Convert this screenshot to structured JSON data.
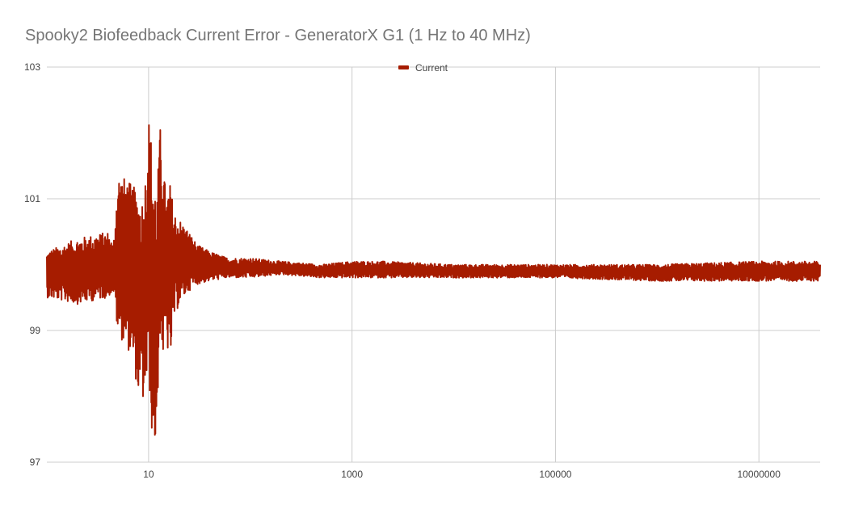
{
  "chart_data": {
    "type": "line",
    "title": "Spooky2 Biofeedback Current Error - GeneratorX G1 (1 Hz to 40 MHz)",
    "xlabel": "",
    "ylabel": "",
    "x_scale": "log",
    "xlim": [
      1,
      40000000
    ],
    "ylim": [
      97,
      103
    ],
    "x_ticks": [
      10,
      1000,
      100000,
      10000000
    ],
    "x_tick_labels": [
      "10",
      "1000",
      "100000",
      "10000000"
    ],
    "y_ticks": [
      97,
      99,
      101,
      103
    ],
    "y_tick_labels": [
      "97",
      "99",
      "101",
      "103"
    ],
    "grid": true,
    "legend_position": "top-center",
    "series": [
      {
        "name": "Current",
        "color": "#a61c00",
        "envelope": {
          "x": [
            1,
            2,
            4,
            4.5,
            5,
            6,
            7,
            8,
            9,
            10,
            11,
            12,
            13,
            14,
            15,
            16,
            18,
            20,
            25,
            30,
            40,
            60,
            100,
            200,
            500,
            1000,
            2000,
            10000,
            100000,
            1000000,
            10000000,
            40000000
          ],
          "y_max": [
            100.2,
            100.4,
            100.5,
            100.3,
            101.4,
            101.3,
            101.2,
            101.1,
            101.0,
            102.3,
            101.7,
            101.0,
            102.1,
            101.5,
            101.0,
            101.3,
            100.8,
            100.7,
            100.5,
            100.3,
            100.2,
            100.1,
            100.1,
            100.05,
            100.0,
            100.05,
            100.05,
            100.0,
            100.0,
            100.0,
            100.05,
            100.05
          ],
          "y_min": [
            99.5,
            99.4,
            99.5,
            99.6,
            98.9,
            98.8,
            98.5,
            98.0,
            97.9,
            98.3,
            97.2,
            97.3,
            99.0,
            98.5,
            98.9,
            98.4,
            99.2,
            99.4,
            99.6,
            99.7,
            99.75,
            99.8,
            99.8,
            99.85,
            99.8,
            99.8,
            99.8,
            99.8,
            99.8,
            99.75,
            99.75,
            99.75
          ]
        }
      }
    ]
  }
}
